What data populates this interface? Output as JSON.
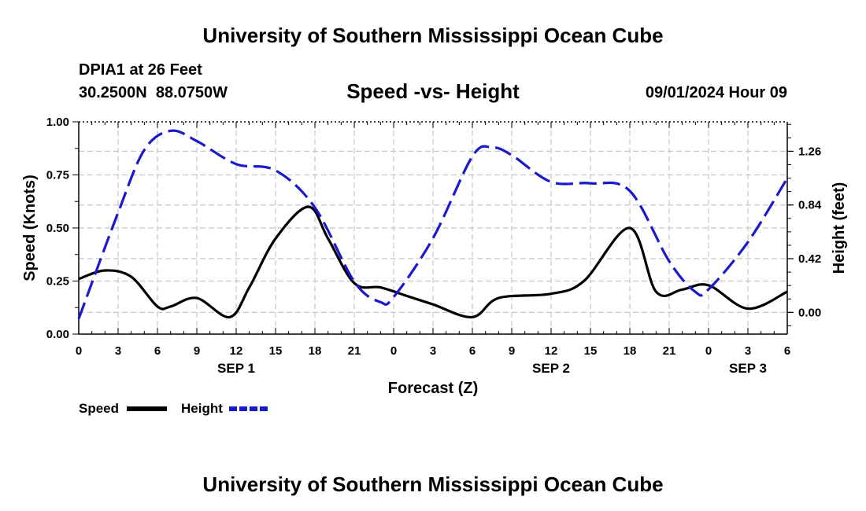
{
  "header": {
    "title_top": "University of Southern Mississippi Ocean Cube",
    "station": "DPIA1 at 26 Feet",
    "coords": "30.2500N  88.0750W",
    "chart_title": "Speed -vs- Height",
    "datetime": "09/01/2024 Hour 09"
  },
  "footer": {
    "title_bottom": "University of Southern Mississippi Ocean Cube"
  },
  "chart_data": {
    "type": "line",
    "title": "Speed -vs- Height",
    "xlabel": "Forecast (Z)",
    "ylabel_left": "Speed (Knots)",
    "ylabel_right": "Height (feet)",
    "x_range_hours": [
      0,
      54
    ],
    "ylim_left": [
      0,
      1.0
    ],
    "ylim_right": [
      -0.17,
      1.49
    ],
    "x_ticks": [
      {
        "h": 0,
        "label": "0"
      },
      {
        "h": 3,
        "label": "3"
      },
      {
        "h": 6,
        "label": "6"
      },
      {
        "h": 9,
        "label": "9"
      },
      {
        "h": 12,
        "label": "12"
      },
      {
        "h": 15,
        "label": "15"
      },
      {
        "h": 18,
        "label": "18"
      },
      {
        "h": 21,
        "label": "21"
      },
      {
        "h": 24,
        "label": "0"
      },
      {
        "h": 27,
        "label": "3"
      },
      {
        "h": 30,
        "label": "6"
      },
      {
        "h": 33,
        "label": "9"
      },
      {
        "h": 36,
        "label": "12"
      },
      {
        "h": 39,
        "label": "15"
      },
      {
        "h": 42,
        "label": "18"
      },
      {
        "h": 45,
        "label": "21"
      },
      {
        "h": 48,
        "label": "0"
      },
      {
        "h": 51,
        "label": "3"
      },
      {
        "h": 54,
        "label": "6"
      }
    ],
    "day_labels": [
      {
        "h": 12,
        "label": "SEP 1"
      },
      {
        "h": 36,
        "label": "SEP 2"
      },
      {
        "h": 51,
        "label": "SEP 3"
      }
    ],
    "left_ticks": [
      {
        "v": 0.0,
        "label": "0.00"
      },
      {
        "v": 0.25,
        "label": "0.25"
      },
      {
        "v": 0.5,
        "label": "0.50"
      },
      {
        "v": 0.75,
        "label": "0.75"
      },
      {
        "v": 1.0,
        "label": "1.00"
      }
    ],
    "right_ticks": [
      {
        "v": 0.0,
        "label": "0.00"
      },
      {
        "v": 0.42,
        "label": "0.42"
      },
      {
        "v": 0.84,
        "label": "0.84"
      },
      {
        "v": 1.26,
        "label": "1.26"
      }
    ],
    "series": [
      {
        "name": "Speed",
        "axis": "left",
        "color": "#000000",
        "dash": "none",
        "x": [
          0,
          2,
          4,
          6,
          7,
          9,
          11.5,
          13,
          15,
          17.5,
          19,
          21,
          23,
          25,
          27,
          30,
          32,
          36,
          38.5,
          42,
          44,
          46,
          48,
          51,
          54
        ],
        "y": [
          0.26,
          0.3,
          0.27,
          0.13,
          0.13,
          0.17,
          0.08,
          0.22,
          0.45,
          0.6,
          0.45,
          0.24,
          0.22,
          0.18,
          0.14,
          0.08,
          0.17,
          0.19,
          0.25,
          0.5,
          0.2,
          0.21,
          0.23,
          0.12,
          0.2
        ]
      },
      {
        "name": "Height",
        "axis": "right",
        "color": "#1a1acc",
        "dash": "dashed",
        "x": [
          0,
          3,
          5,
          7,
          9,
          12,
          15,
          18,
          21,
          23,
          24,
          27,
          30,
          31.5,
          33,
          36,
          39,
          42,
          45,
          47,
          48,
          51,
          54
        ],
        "y": [
          -0.05,
          0.78,
          1.27,
          1.42,
          1.34,
          1.16,
          1.11,
          0.82,
          0.24,
          0.08,
          0.12,
          0.58,
          1.22,
          1.29,
          1.23,
          1.02,
          1.01,
          0.95,
          0.4,
          0.16,
          0.18,
          0.55,
          1.05
        ]
      }
    ],
    "legend": [
      {
        "label": "Speed",
        "color": "#000000",
        "dash": "none"
      },
      {
        "label": "Height",
        "color": "#1a1acc",
        "dash": "dashed"
      }
    ]
  }
}
